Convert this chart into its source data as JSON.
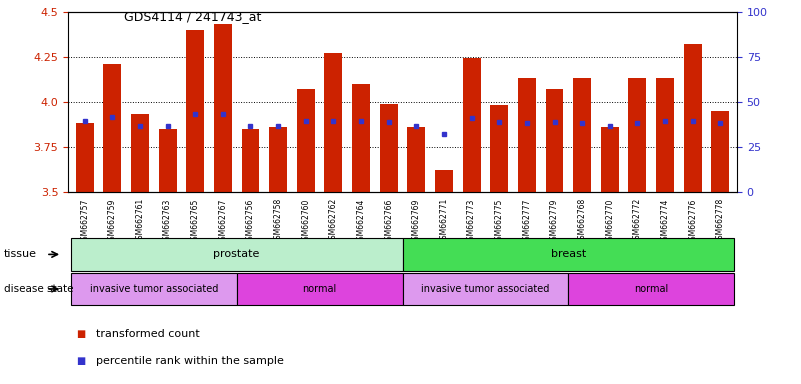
{
  "title": "GDS4114 / 241743_at",
  "samples": [
    "GSM662757",
    "GSM662759",
    "GSM662761",
    "GSM662763",
    "GSM662765",
    "GSM662767",
    "GSM662756",
    "GSM662758",
    "GSM662760",
    "GSM662762",
    "GSM662764",
    "GSM662766",
    "GSM662769",
    "GSM662771",
    "GSM662773",
    "GSM662775",
    "GSM662777",
    "GSM662779",
    "GSM662768",
    "GSM662770",
    "GSM662772",
    "GSM662774",
    "GSM662776",
    "GSM662778"
  ],
  "bar_values": [
    3.88,
    4.21,
    3.93,
    3.85,
    4.4,
    4.43,
    3.85,
    3.86,
    4.07,
    4.27,
    4.1,
    3.99,
    3.86,
    3.62,
    4.24,
    3.98,
    4.13,
    4.07,
    4.13,
    3.86,
    4.13,
    4.13,
    4.32,
    3.95
  ],
  "percentile_values": [
    3.895,
    3.915,
    3.863,
    3.868,
    3.93,
    3.93,
    3.868,
    3.863,
    3.895,
    3.895,
    3.895,
    3.888,
    3.868,
    3.82,
    3.91,
    3.888,
    3.88,
    3.888,
    3.88,
    3.868,
    3.88,
    3.895,
    3.895,
    3.88
  ],
  "ylim": [
    3.5,
    4.5
  ],
  "yticks_left": [
    3.5,
    3.75,
    4.0,
    4.25,
    4.5
  ],
  "yticks_right": [
    0,
    25,
    50,
    75,
    100
  ],
  "bar_color": "#cc2200",
  "percentile_color": "#3333cc",
  "tissue_groups": [
    {
      "label": "prostate",
      "start": 0,
      "end": 12,
      "color": "#bbeecc"
    },
    {
      "label": "breast",
      "start": 12,
      "end": 24,
      "color": "#44dd55"
    }
  ],
  "disease_groups": [
    {
      "label": "invasive tumor associated",
      "start": 0,
      "end": 6,
      "color": "#dd99ee"
    },
    {
      "label": "normal",
      "start": 6,
      "end": 12,
      "color": "#dd44dd"
    },
    {
      "label": "invasive tumor associated",
      "start": 12,
      "end": 18,
      "color": "#dd99ee"
    },
    {
      "label": "normal",
      "start": 18,
      "end": 24,
      "color": "#dd44dd"
    }
  ],
  "legend_items": [
    {
      "label": "transformed count",
      "color": "#cc2200"
    },
    {
      "label": "percentile rank within the sample",
      "color": "#3333cc"
    }
  ]
}
